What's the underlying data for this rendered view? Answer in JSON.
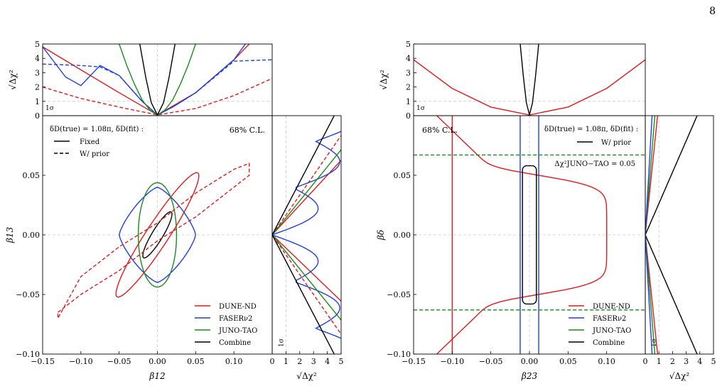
{
  "page_number": "8",
  "colors": {
    "dune": "#e41a1c",
    "faser": "#1f3fe0",
    "juno": "#1b8a1b",
    "combine": "#000000",
    "grid": "#cccccc"
  },
  "chart_data": [
    {
      "type": "line",
      "panel": "left-top",
      "ylabel": "√Δχ²",
      "xlim": [
        -0.15,
        0.15
      ],
      "ylim": [
        0,
        5
      ],
      "yticks": [
        0,
        1,
        2,
        3,
        4,
        5
      ],
      "ref_label": "1σ",
      "series": [
        {
          "name": "DUNE-ND",
          "style": "solid",
          "x": [
            -0.15,
            -0.1,
            -0.05,
            0.0,
            0.05,
            0.1,
            0.12
          ],
          "y": [
            4.8,
            3.2,
            1.6,
            0.05,
            1.6,
            3.9,
            5.0
          ]
        },
        {
          "name": "DUNE-ND",
          "style": "dashed",
          "x": [
            -0.15,
            -0.1,
            -0.05,
            0.0,
            0.05,
            0.1,
            0.15
          ],
          "y": [
            2.0,
            1.2,
            0.6,
            0.05,
            0.5,
            1.4,
            2.6
          ]
        },
        {
          "name": "FASERν2",
          "style": "solid",
          "x": [
            -0.15,
            -0.12,
            -0.1,
            -0.075,
            -0.05,
            -0.02,
            0.0,
            0.02,
            0.05,
            0.1,
            0.115
          ],
          "y": [
            4.8,
            2.7,
            2.1,
            3.5,
            2.8,
            1.0,
            0.05,
            0.6,
            1.6,
            3.9,
            5.0
          ]
        },
        {
          "name": "FASERν2",
          "style": "dashed",
          "x": [
            -0.15,
            -0.1,
            -0.075,
            -0.05,
            -0.02,
            0.0,
            0.02,
            0.05,
            0.1,
            0.15
          ],
          "y": [
            3.6,
            3.5,
            3.4,
            2.8,
            1.0,
            0.05,
            0.6,
            1.6,
            3.8,
            3.9
          ]
        },
        {
          "name": "JUNO-TAO",
          "style": "solid",
          "x": [
            -0.05,
            -0.04,
            -0.03,
            -0.02,
            -0.01,
            0.0,
            0.01,
            0.02,
            0.03,
            0.04,
            0.05
          ],
          "y": [
            5.0,
            3.5,
            2.2,
            1.1,
            0.4,
            0.05,
            0.4,
            1.1,
            2.2,
            3.5,
            5.0
          ]
        },
        {
          "name": "Combine",
          "style": "solid",
          "x": [
            -0.023,
            -0.015,
            -0.008,
            0.0,
            0.008,
            0.015,
            0.023
          ],
          "y": [
            5.0,
            2.6,
            0.9,
            0.05,
            0.9,
            2.6,
            5.0
          ]
        }
      ]
    },
    {
      "type": "line",
      "panel": "left-main",
      "xlabel": "β12",
      "ylabel": "β13",
      "xlim": [
        -0.15,
        0.15
      ],
      "ylim": [
        -0.1,
        0.1
      ],
      "xticks": [
        -0.15,
        -0.1,
        -0.05,
        0.0,
        0.05,
        0.1
      ],
      "yticks": [
        -0.1,
        -0.05,
        0.0,
        0.05
      ],
      "header": "δD(true) = 1.08π, δD(fit) :",
      "style_legend": [
        "Fixed",
        "W/ prior"
      ],
      "cl_label": "68% C.L.",
      "legend": [
        "DUNE-ND",
        "FASERν2",
        "JUNO-TAO",
        "Combine"
      ],
      "contours": [
        {
          "name": "DUNE-ND",
          "style": "solid",
          "center": [
            0.0,
            0.0
          ],
          "semi_axes": [
            0.065,
            0.01
          ],
          "angle_deg": 34
        },
        {
          "name": "FASERν2",
          "style": "solid",
          "center": [
            0.0,
            0.0
          ],
          "diamond": true,
          "size": [
            0.05,
            0.04
          ]
        },
        {
          "name": "JUNO-TAO",
          "style": "solid",
          "center": [
            0.0,
            0.0
          ],
          "semi_axes": [
            0.025,
            0.025
          ],
          "angle_deg": 0
        },
        {
          "name": "Combine",
          "style": "solid",
          "center": [
            0.0,
            0.0
          ],
          "semi_axes": [
            0.023,
            0.005
          ],
          "angle_deg": 35
        },
        {
          "name": "DUNE-ND",
          "style": "dashed",
          "arc": true,
          "x": [
            -0.13,
            -0.1,
            -0.05,
            0.0,
            0.05,
            0.1,
            0.12
          ],
          "y_inner": [
            -0.065,
            -0.05,
            -0.03,
            -0.005,
            0.015,
            0.04,
            0.05
          ],
          "y_outer": [
            -0.07,
            -0.035,
            -0.01,
            0.01,
            0.035,
            0.055,
            0.06
          ]
        }
      ]
    },
    {
      "type": "line",
      "panel": "left-right",
      "xlabel": "√Δχ²",
      "xlim": [
        0,
        5
      ],
      "xticks": [
        0,
        1,
        2,
        3,
        4,
        5
      ],
      "ref_label": "1σ"
    },
    {
      "type": "line",
      "panel": "right-top",
      "ylabel": "√Δχ²",
      "xlim": [
        -0.15,
        0.15
      ],
      "ylim": [
        0,
        5
      ],
      "yticks": [
        0,
        1,
        2,
        3,
        4,
        5
      ],
      "ref_label": "1σ",
      "series": [
        {
          "name": "DUNE-ND",
          "style": "solid",
          "x": [
            -0.15,
            -0.1,
            -0.05,
            0.0,
            0.05,
            0.1,
            0.15
          ],
          "y": [
            3.9,
            1.9,
            0.6,
            0.05,
            0.6,
            1.9,
            3.9
          ]
        },
        {
          "name": "Combine",
          "style": "solid",
          "x": [
            -0.012,
            -0.008,
            -0.004,
            0.0,
            0.004,
            0.008,
            0.012
          ],
          "y": [
            5.0,
            2.8,
            0.9,
            0.05,
            0.9,
            2.8,
            5.0
          ]
        }
      ]
    },
    {
      "type": "line",
      "panel": "right-main",
      "xlabel": "β23",
      "ylabel": "βδ",
      "xlim": [
        -0.15,
        0.15
      ],
      "ylim": [
        -0.1,
        0.1
      ],
      "xticks": [
        -0.15,
        -0.1,
        -0.05,
        0.0,
        0.05,
        0.1
      ],
      "yticks": [
        -0.1,
        -0.05,
        0.0,
        0.05
      ],
      "header": "δD(true) = 1.08π, δD(fit) :",
      "style_legend": [
        "W/ prior"
      ],
      "cl_label": "68% C.L.",
      "hline_label": "Δχ²JUNO−TAO = 0.05",
      "hlines": [
        0.067,
        -0.063
      ],
      "legend": [
        "DUNE-ND",
        "FASERν2",
        "JUNO-TAO",
        "Combine"
      ]
    },
    {
      "type": "line",
      "panel": "right-right",
      "xlabel": "√Δχ²",
      "xlim": [
        0,
        5
      ],
      "xticks": [
        0,
        1,
        2,
        3,
        4,
        5
      ],
      "ref_label": "1σ"
    }
  ]
}
